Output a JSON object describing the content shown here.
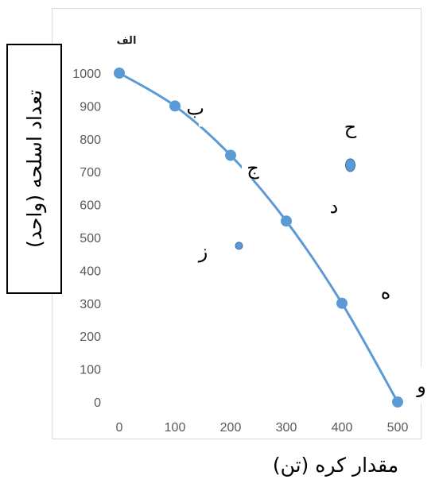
{
  "chart_data": {
    "type": "scatter",
    "title": "الف",
    "xlabel": "مقدار کره (تن)",
    "ylabel": "تعداد اسلحه (واحد)",
    "xlim": [
      0,
      500
    ],
    "ylim": [
      0,
      1000
    ],
    "xticks": [
      "0",
      "100",
      "200",
      "300",
      "400",
      "500"
    ],
    "yticks": [
      "0",
      "100",
      "200",
      "300",
      "400",
      "500",
      "600",
      "700",
      "800",
      "900",
      "1000"
    ],
    "grid": false,
    "color": "#5b9bd5",
    "curve": {
      "x": [
        0,
        100,
        200,
        300,
        400,
        500
      ],
      "y": [
        1000,
        900,
        750,
        550,
        300,
        0
      ]
    },
    "points": [
      {
        "label": "",
        "x": 0,
        "y": 1000
      },
      {
        "label": "ب",
        "x": 100,
        "y": 900
      },
      {
        "label": "ج",
        "x": 200,
        "y": 750
      },
      {
        "label": "د",
        "x": 300,
        "y": 550
      },
      {
        "label": "ه",
        "x": 400,
        "y": 300
      },
      {
        "label": "و",
        "x": 500,
        "y": 0
      }
    ],
    "off_curve_points": [
      {
        "label": "ز",
        "x": 215,
        "y": 475
      },
      {
        "label": "ح",
        "x": 415,
        "y": 720
      }
    ]
  }
}
